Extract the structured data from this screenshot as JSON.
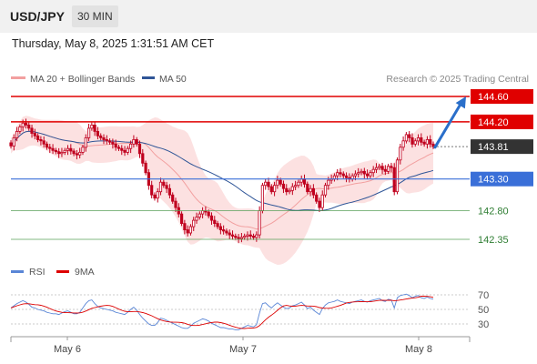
{
  "header": {
    "pair": "USD/JPY",
    "timeframe": "30 MIN"
  },
  "timestamp": "Thursday, May 8, 2025 1:31:51 AM CET",
  "legend": {
    "ma20": "MA 20 + Bollinger Bands",
    "ma50": "MA 50",
    "copyright": "Research © 2025 Trading Central"
  },
  "rsi_legend": {
    "rsi": "RSI",
    "ma": "9MA"
  },
  "colors": {
    "resistance": "#e00000",
    "support_line": "#3a6fd8",
    "target_green": "#5aa05a",
    "candle": "#c0001e",
    "bollinger_fill": "#fcdcdc",
    "ma20": "#f2a0a0",
    "ma50": "#2f5597",
    "arrow": "#2a6fca",
    "current_label_bg": "#333333",
    "rsi_line": "#5a86d6",
    "rsi_ma": "#dd0000"
  },
  "chart_data": [
    {
      "type": "candlestick",
      "title": "USD/JPY",
      "timeframe": "30 MIN",
      "xlabels": [
        "May 6",
        "May 7",
        "May 8"
      ],
      "ylim": [
        142.0,
        144.85
      ],
      "current_price": 143.81,
      "levels": [
        {
          "value": 144.6,
          "label": "144.60",
          "kind": "resistance"
        },
        {
          "value": 144.2,
          "label": "144.20",
          "kind": "resistance"
        },
        {
          "value": 143.81,
          "label": "143.81",
          "kind": "current"
        },
        {
          "value": 143.3,
          "label": "143.30",
          "kind": "pivot"
        },
        {
          "value": 142.8,
          "label": "142.80",
          "kind": "support"
        },
        {
          "value": 142.35,
          "label": "142.35",
          "kind": "support"
        }
      ],
      "arrow": {
        "from_price": 143.8,
        "to_price": 144.6,
        "direction": "up"
      },
      "series": [
        {
          "name": "MA 20 + Bollinger Bands"
        },
        {
          "name": "MA 50"
        }
      ],
      "close": [
        143.82,
        143.95,
        144.05,
        144.12,
        144.18,
        144.15,
        144.1,
        144.02,
        143.98,
        143.92,
        143.9,
        143.85,
        143.8,
        143.78,
        143.75,
        143.73,
        143.7,
        143.72,
        143.75,
        143.78,
        143.74,
        143.7,
        143.68,
        143.72,
        143.8,
        143.95,
        144.1,
        144.15,
        144.05,
        143.98,
        143.95,
        143.92,
        143.9,
        143.88,
        143.85,
        143.8,
        143.78,
        143.75,
        143.72,
        143.78,
        143.85,
        143.92,
        143.85,
        143.7,
        143.55,
        143.4,
        143.2,
        143.05,
        143.0,
        143.1,
        143.25,
        143.2,
        143.15,
        143.05,
        142.95,
        142.85,
        142.75,
        142.6,
        142.5,
        142.45,
        142.55,
        142.65,
        142.7,
        142.75,
        142.8,
        142.78,
        142.72,
        142.65,
        142.6,
        142.55,
        142.5,
        142.48,
        142.45,
        142.42,
        142.4,
        142.38,
        142.36,
        142.38,
        142.4,
        142.42,
        142.4,
        142.38,
        142.42,
        142.8,
        143.2,
        143.25,
        143.18,
        143.1,
        143.2,
        143.28,
        143.22,
        143.15,
        143.1,
        143.12,
        143.18,
        143.2,
        143.25,
        143.3,
        143.22,
        143.1,
        143.15,
        143.05,
        142.95,
        142.85,
        143.05,
        143.2,
        143.28,
        143.3,
        143.35,
        143.4,
        143.38,
        143.35,
        143.32,
        143.3,
        143.35,
        143.38,
        143.4,
        143.42,
        143.38,
        143.35,
        143.4,
        143.45,
        143.48,
        143.5,
        143.45,
        143.42,
        143.5,
        143.48,
        143.1,
        143.6,
        143.8,
        143.9,
        144.0,
        143.95,
        143.85,
        143.9,
        143.95,
        143.88,
        143.85,
        143.92,
        143.85,
        143.81
      ],
      "rsi": {
        "ylim": [
          20,
          80
        ],
        "ticks": [
          70,
          50,
          30
        ],
        "values": [
          52,
          55,
          58,
          60,
          62,
          60,
          57,
          53,
          52,
          50,
          49,
          48,
          46,
          45,
          44,
          44,
          43,
          45,
          47,
          48,
          46,
          44,
          44,
          46,
          52,
          58,
          62,
          63,
          58,
          54,
          52,
          51,
          50,
          49,
          48,
          46,
          45,
          44,
          43,
          46,
          50,
          53,
          49,
          43,
          38,
          34,
          30,
          28,
          28,
          32,
          38,
          37,
          35,
          33,
          31,
          29,
          27,
          25,
          24,
          24,
          27,
          31,
          33,
          35,
          37,
          36,
          34,
          31,
          29,
          27,
          25,
          25,
          24,
          23,
          23,
          22,
          22,
          24,
          26,
          28,
          27,
          26,
          29,
          45,
          58,
          59,
          55,
          52,
          56,
          59,
          56,
          53,
          51,
          52,
          55,
          56,
          58,
          60,
          56,
          51,
          53,
          49,
          46,
          43,
          51,
          56,
          59,
          60,
          61,
          63,
          61,
          60,
          59,
          58,
          60,
          61,
          62,
          63,
          61,
          60,
          62,
          63,
          64,
          65,
          62,
          61,
          64,
          63,
          52,
          66,
          69,
          70,
          71,
          69,
          66,
          68,
          69,
          66,
          65,
          67,
          65,
          64
        ]
      }
    }
  ]
}
